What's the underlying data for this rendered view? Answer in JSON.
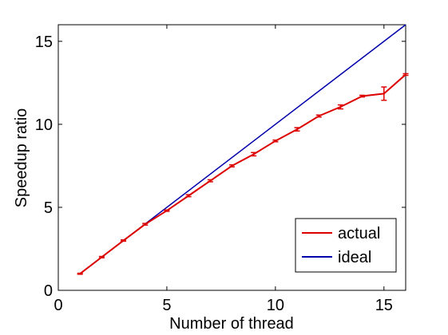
{
  "chart_data": {
    "type": "line",
    "xlabel": "Number of thread",
    "ylabel": "Speedup ratio",
    "xlim": [
      0,
      16
    ],
    "ylim": [
      0,
      16
    ],
    "xticks": [
      0,
      5,
      10,
      15
    ],
    "yticks": [
      0,
      5,
      10,
      15
    ],
    "grid": false,
    "legend_position": "bottom-right",
    "series": [
      {
        "name": "actual",
        "color": "#dd0000",
        "x": [
          1,
          2,
          3,
          4,
          5,
          6,
          7,
          8,
          9,
          10,
          11,
          12,
          13,
          14,
          15,
          16
        ],
        "y": [
          1.0,
          2.0,
          3.0,
          3.98,
          4.8,
          5.7,
          6.6,
          7.5,
          8.2,
          9.0,
          9.7,
          10.5,
          11.05,
          11.7,
          11.85,
          13.0
        ],
        "err": [
          0.03,
          0.04,
          0.04,
          0.05,
          0.04,
          0.06,
          0.06,
          0.06,
          0.1,
          0.05,
          0.1,
          0.06,
          0.12,
          0.05,
          0.4,
          0.05
        ]
      },
      {
        "name": "ideal",
        "color": "#0000aa",
        "x": [
          1,
          16
        ],
        "y": [
          1,
          16
        ]
      }
    ]
  }
}
